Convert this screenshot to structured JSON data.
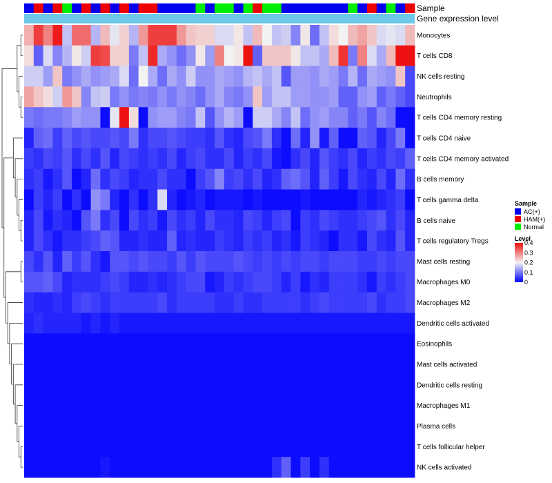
{
  "chart_data": {
    "type": "heatmap",
    "annotation_labels": [
      "Sample",
      "Gene expression level"
    ],
    "sample_groups": [
      "AC",
      "HAM",
      "AC",
      "HAM",
      "N",
      "AC",
      "HAM",
      "AC",
      "HAM",
      "AC",
      "HAM",
      "AC",
      "HAM",
      "HAM",
      "AC",
      "AC",
      "AC",
      "AC",
      "N",
      "AC",
      "N",
      "N",
      "AC",
      "N",
      "HAM",
      "N",
      "N",
      "AC",
      "AC",
      "AC",
      "AC",
      "AC",
      "AC",
      "AC",
      "N",
      "AC",
      "HAM",
      "AC",
      "N",
      "AC",
      "HAM"
    ],
    "rows": [
      {
        "name": "Monocytes",
        "values": [
          0.26,
          0.36,
          0.3,
          0.39,
          0.16,
          0.32,
          0.32,
          0.15,
          0.25,
          0.19,
          0.23,
          0.15,
          0.28,
          0.36,
          0.36,
          0.36,
          0.28,
          0.24,
          0.23,
          0.23,
          0.18,
          0.18,
          0.21,
          0.16,
          0.25,
          0.2,
          0.16,
          0.17,
          0.11,
          0.21,
          0.09,
          0.16,
          0.22,
          0.2,
          0.25,
          0.27,
          0.24,
          0.18,
          0.19,
          0.18,
          0.25
        ]
      },
      {
        "name": "T cells CD8",
        "values": [
          0.22,
          0.08,
          0.18,
          0.11,
          0.15,
          0.21,
          0.17,
          0.36,
          0.35,
          0.23,
          0.23,
          0.1,
          0.16,
          0.38,
          0.14,
          0.12,
          0.09,
          0.12,
          0.21,
          0.13,
          0.3,
          0.2,
          0.21,
          0.4,
          0.08,
          0.24,
          0.24,
          0.24,
          0.21,
          0.16,
          0.16,
          0.14,
          0.25,
          0.37,
          0.1,
          0.3,
          0.18,
          0.14,
          0.25,
          0.4,
          0.4
        ]
      },
      {
        "name": "NK cells resting",
        "values": [
          0.17,
          0.17,
          0.13,
          0.24,
          0.1,
          0.12,
          0.14,
          0.12,
          0.13,
          0.14,
          0.18,
          0.09,
          0.2,
          0.14,
          0.09,
          0.14,
          0.12,
          0.17,
          0.12,
          0.12,
          0.14,
          0.13,
          0.12,
          0.15,
          0.16,
          0.14,
          0.16,
          0.07,
          0.13,
          0.13,
          0.12,
          0.14,
          0.13,
          0.1,
          0.15,
          0.09,
          0.14,
          0.13,
          0.12,
          0.24,
          0.06
        ]
      },
      {
        "name": "Neutrophils",
        "values": [
          0.27,
          0.24,
          0.22,
          0.17,
          0.28,
          0.24,
          0.11,
          0.16,
          0.17,
          0.1,
          0.12,
          0.1,
          0.11,
          0.1,
          0.12,
          0.1,
          0.12,
          0.11,
          0.09,
          0.12,
          0.14,
          0.11,
          0.1,
          0.12,
          0.24,
          0.13,
          0.16,
          0.16,
          0.13,
          0.13,
          0.12,
          0.12,
          0.13,
          0.08,
          0.08,
          0.12,
          0.13,
          0.08,
          0.1,
          0.08,
          0.06
        ]
      },
      {
        "name": "T cells CD4 memory resting",
        "values": [
          0.1,
          0.09,
          0.1,
          0.1,
          0.11,
          0.13,
          0.12,
          0.12,
          0.01,
          0.19,
          0.4,
          0.22,
          0.01,
          0.12,
          0.13,
          0.13,
          0.11,
          0.1,
          0.16,
          0.07,
          0.12,
          0.15,
          0.13,
          0.01,
          0.17,
          0.17,
          0.14,
          0.11,
          0.16,
          0.09,
          0.12,
          0.13,
          0.11,
          0.11,
          0.08,
          0.1,
          0.07,
          0.11,
          0.09,
          0.01,
          0.01
        ]
      },
      {
        "name": "T cells CD4 naive",
        "values": [
          0.03,
          0.08,
          0.09,
          0.05,
          0.08,
          0.06,
          0.07,
          0.06,
          0.06,
          0.07,
          0.06,
          0.1,
          0.04,
          0.06,
          0.06,
          0.07,
          0.06,
          0.05,
          0.05,
          0.04,
          0.07,
          0.04,
          0.03,
          0.06,
          0.07,
          0.1,
          0.04,
          0.01,
          0.09,
          0.03,
          0.12,
          0.02,
          0.08,
          0.01,
          0.01,
          0.08,
          0.07,
          0.03,
          0.06,
          0.1,
          0.01
        ]
      },
      {
        "name": "T cells CD4 memory activated",
        "values": [
          0.05,
          0.04,
          0.06,
          0.05,
          0.07,
          0.04,
          0.06,
          0.04,
          0.07,
          0.03,
          0.06,
          0.05,
          0.04,
          0.05,
          0.04,
          0.06,
          0.03,
          0.05,
          0.06,
          0.04,
          0.04,
          0.06,
          0.03,
          0.05,
          0.04,
          0.06,
          0.02,
          0.01,
          0.04,
          0.06,
          0.03,
          0.07,
          0.05,
          0.04,
          0.06,
          0.03,
          0.05,
          0.04,
          0.06,
          0.05,
          0.08
        ]
      },
      {
        "name": "B cells memory",
        "values": [
          0.04,
          0.05,
          0.02,
          0.04,
          0.07,
          0.01,
          0.03,
          0.09,
          0.04,
          0.06,
          0.05,
          0.03,
          0.04,
          0.04,
          0.06,
          0.04,
          0.04,
          0.01,
          0.05,
          0.07,
          0.11,
          0.05,
          0.06,
          0.04,
          0.06,
          0.03,
          0.04,
          0.08,
          0.09,
          0.07,
          0.03,
          0.08,
          0.05,
          0.02,
          0.06,
          0.04,
          0.03,
          0.06,
          0.03,
          0.09,
          0.04
        ]
      },
      {
        "name": "T cells gamma delta",
        "values": [
          0.01,
          0.05,
          0.03,
          0.05,
          0.01,
          0.04,
          0.01,
          0.12,
          0.1,
          0.03,
          0.01,
          0.04,
          0.01,
          0.04,
          0.18,
          0.03,
          0.01,
          0.02,
          0.03,
          0.01,
          0.02,
          0.02,
          0.02,
          0.01,
          0.02,
          0.01,
          0.01,
          0.01,
          0.01,
          0.02,
          0.01,
          0.01,
          0.01,
          0.01,
          0.01,
          0.03,
          0.02,
          0.03,
          0.04,
          0.05,
          0.01
        ]
      },
      {
        "name": "B cells naive",
        "values": [
          0.03,
          0.06,
          0.02,
          0.04,
          0.03,
          0.01,
          0.07,
          0.1,
          0.04,
          0.06,
          0.01,
          0.06,
          0.04,
          0.05,
          0.02,
          0.06,
          0.04,
          0.05,
          0.03,
          0.06,
          0.04,
          0.04,
          0.03,
          0.06,
          0.05,
          0.03,
          0.05,
          0.06,
          0.01,
          0.05,
          0.04,
          0.06,
          0.05,
          0.04,
          0.04,
          0.05,
          0.06,
          0.07,
          0.04,
          0.06,
          0.03
        ]
      },
      {
        "name": "T cells regulatory  Tregs",
        "values": [
          0.03,
          0.06,
          0.04,
          0.02,
          0.04,
          0.04,
          0.05,
          0.06,
          0.08,
          0.07,
          0.03,
          0.03,
          0.04,
          0.03,
          0.03,
          0.08,
          0.03,
          0.04,
          0.03,
          0.03,
          0.05,
          0.04,
          0.03,
          0.05,
          0.04,
          0.05,
          0.03,
          0.04,
          0.02,
          0.05,
          0.04,
          0.03,
          0.01,
          0.04,
          0.04,
          0.02,
          0.06,
          0.04,
          0.03,
          0.07,
          0.03
        ]
      },
      {
        "name": "Mast cells resting",
        "values": [
          0.06,
          0.04,
          0.07,
          0.03,
          0.08,
          0.05,
          0.07,
          0.04,
          0.02,
          0.07,
          0.07,
          0.06,
          0.07,
          0.06,
          0.06,
          0.05,
          0.07,
          0.05,
          0.07,
          0.06,
          0.06,
          0.06,
          0.07,
          0.06,
          0.05,
          0.06,
          0.05,
          0.06,
          0.05,
          0.06,
          0.06,
          0.05,
          0.06,
          0.06,
          0.06,
          0.05,
          0.05,
          0.06,
          0.05,
          0.06,
          0.06
        ]
      },
      {
        "name": "Macrophages M0",
        "values": [
          0.07,
          0.07,
          0.08,
          0.06,
          0.03,
          0.04,
          0.04,
          0.04,
          0.05,
          0.06,
          0.05,
          0.03,
          0.03,
          0.04,
          0.03,
          0.04,
          0.05,
          0.06,
          0.06,
          0.02,
          0.03,
          0.05,
          0.04,
          0.05,
          0.06,
          0.06,
          0.05,
          0.03,
          0.05,
          0.02,
          0.04,
          0.03,
          0.05,
          0.05,
          0.05,
          0.04,
          0.02,
          0.05,
          0.04,
          0.05,
          0.06
        ]
      },
      {
        "name": "Macrophages M2",
        "values": [
          0.04,
          0.03,
          0.03,
          0.04,
          0.03,
          0.05,
          0.06,
          0.05,
          0.04,
          0.05,
          0.05,
          0.05,
          0.05,
          0.05,
          0.06,
          0.04,
          0.05,
          0.05,
          0.05,
          0.05,
          0.04,
          0.04,
          0.05,
          0.04,
          0.04,
          0.05,
          0.05,
          0.05,
          0.05,
          0.04,
          0.05,
          0.06,
          0.05,
          0.05,
          0.05,
          0.05,
          0.06,
          0.04,
          0.05,
          0.05,
          0.06
        ]
      },
      {
        "name": "Dendritic cells activated",
        "values": [
          0.03,
          0.04,
          0.03,
          0.03,
          0.03,
          0.03,
          0.02,
          0.03,
          0.02,
          0.03,
          0.02,
          0.02,
          0.02,
          0.02,
          0.02,
          0.02,
          0.02,
          0.02,
          0.02,
          0.02,
          0.02,
          0.02,
          0.02,
          0.02,
          0.02,
          0.02,
          0.02,
          0.02,
          0.02,
          0.02,
          0.02,
          0.02,
          0.02,
          0.02,
          0.02,
          0.02,
          0.02,
          0.02,
          0.02,
          0.02,
          0.02
        ]
      },
      {
        "name": "Eosinophils",
        "values": [
          0.01,
          0.01,
          0.01,
          0.01,
          0.01,
          0.01,
          0.01,
          0.01,
          0.01,
          0.01,
          0.01,
          0.01,
          0.01,
          0.01,
          0.01,
          0.01,
          0.01,
          0.01,
          0.01,
          0.01,
          0.01,
          0.01,
          0.01,
          0.01,
          0.01,
          0.01,
          0.01,
          0.01,
          0.01,
          0.01,
          0.01,
          0.01,
          0.01,
          0.01,
          0.01,
          0.01,
          0.01,
          0.01,
          0.01,
          0.01,
          0.01
        ]
      },
      {
        "name": "Mast cells activated",
        "values": [
          0.01,
          0.01,
          0.01,
          0.01,
          0.01,
          0.01,
          0.01,
          0.01,
          0.01,
          0.01,
          0.01,
          0.01,
          0.01,
          0.01,
          0.01,
          0.01,
          0.01,
          0.01,
          0.01,
          0.01,
          0.01,
          0.01,
          0.01,
          0.01,
          0.01,
          0.01,
          0.01,
          0.01,
          0.01,
          0.01,
          0.01,
          0.01,
          0.01,
          0.01,
          0.01,
          0.01,
          0.01,
          0.01,
          0.01,
          0.01,
          0.01
        ]
      },
      {
        "name": "Dendritic cells resting",
        "values": [
          0.01,
          0.01,
          0.01,
          0.01,
          0.01,
          0.01,
          0.01,
          0.01,
          0.01,
          0.01,
          0.01,
          0.01,
          0.01,
          0.01,
          0.01,
          0.01,
          0.01,
          0.01,
          0.01,
          0.01,
          0.01,
          0.01,
          0.01,
          0.01,
          0.01,
          0.01,
          0.01,
          0.01,
          0.01,
          0.01,
          0.01,
          0.01,
          0.01,
          0.01,
          0.01,
          0.01,
          0.01,
          0.01,
          0.01,
          0.01,
          0.01
        ]
      },
      {
        "name": "Macrophages M1",
        "values": [
          0.01,
          0.01,
          0.01,
          0.01,
          0.01,
          0.01,
          0.01,
          0.01,
          0.01,
          0.01,
          0.01,
          0.01,
          0.01,
          0.01,
          0.01,
          0.01,
          0.01,
          0.01,
          0.01,
          0.01,
          0.01,
          0.01,
          0.01,
          0.01,
          0.01,
          0.01,
          0.01,
          0.01,
          0.01,
          0.01,
          0.01,
          0.01,
          0.01,
          0.01,
          0.01,
          0.01,
          0.01,
          0.01,
          0.01,
          0.01,
          0.01
        ]
      },
      {
        "name": "Plasma cells",
        "values": [
          0.01,
          0.01,
          0.01,
          0.01,
          0.01,
          0.01,
          0.01,
          0.01,
          0.01,
          0.01,
          0.01,
          0.01,
          0.01,
          0.01,
          0.01,
          0.01,
          0.01,
          0.01,
          0.01,
          0.01,
          0.01,
          0.01,
          0.01,
          0.01,
          0.01,
          0.01,
          0.01,
          0.01,
          0.01,
          0.01,
          0.01,
          0.01,
          0.01,
          0.01,
          0.01,
          0.01,
          0.01,
          0.01,
          0.01,
          0.01,
          0.01
        ]
      },
      {
        "name": "T cells follicular helper",
        "values": [
          0.01,
          0.01,
          0.01,
          0.01,
          0.01,
          0.01,
          0.01,
          0.01,
          0.01,
          0.01,
          0.01,
          0.01,
          0.01,
          0.01,
          0.01,
          0.01,
          0.01,
          0.01,
          0.01,
          0.01,
          0.01,
          0.01,
          0.01,
          0.01,
          0.01,
          0.01,
          0.01,
          0.01,
          0.01,
          0.01,
          0.01,
          0.01,
          0.01,
          0.01,
          0.01,
          0.01,
          0.01,
          0.01,
          0.01,
          0.01,
          0.01
        ]
      },
      {
        "name": "NK cells activated",
        "values": [
          0.01,
          0.01,
          0.01,
          0.01,
          0.01,
          0.01,
          0.01,
          0.01,
          0.02,
          0.01,
          0.01,
          0.01,
          0.01,
          0.01,
          0.01,
          0.01,
          0.01,
          0.01,
          0.01,
          0.01,
          0.01,
          0.01,
          0.01,
          0.01,
          0.01,
          0.01,
          0.04,
          0.08,
          0.01,
          0.05,
          0.01,
          0.04,
          0.01,
          0.01,
          0.01,
          0.01,
          0.01,
          0.01,
          0.01,
          0.01,
          0.01
        ]
      }
    ],
    "legend": {
      "sample": {
        "title": "Sample",
        "entries": [
          {
            "key": "AC",
            "label": "AC(+)",
            "color": "#0000ee"
          },
          {
            "key": "HAM",
            "label": "HAM(+)",
            "color": "#ee0000"
          },
          {
            "key": "N",
            "label": "Normal",
            "color": "#00ee00"
          }
        ]
      },
      "level": {
        "title": "Level",
        "ticks": [
          {
            "value": 0.4,
            "label": "0.4"
          },
          {
            "value": 0.3,
            "label": "0.3"
          },
          {
            "value": 0.2,
            "label": "0.2"
          },
          {
            "value": 0.1,
            "label": "0.1"
          },
          {
            "value": 0,
            "label": "0"
          }
        ],
        "range": [
          0,
          0.4
        ]
      }
    },
    "colors": {
      "low": "#0000ff",
      "mid": "#f2f2f2",
      "high": "#ee1111",
      "expression_bar": "#6fc7ea",
      "annotation_border": "#808080"
    },
    "dendrogram_note": "row clustering tree shown on left"
  }
}
